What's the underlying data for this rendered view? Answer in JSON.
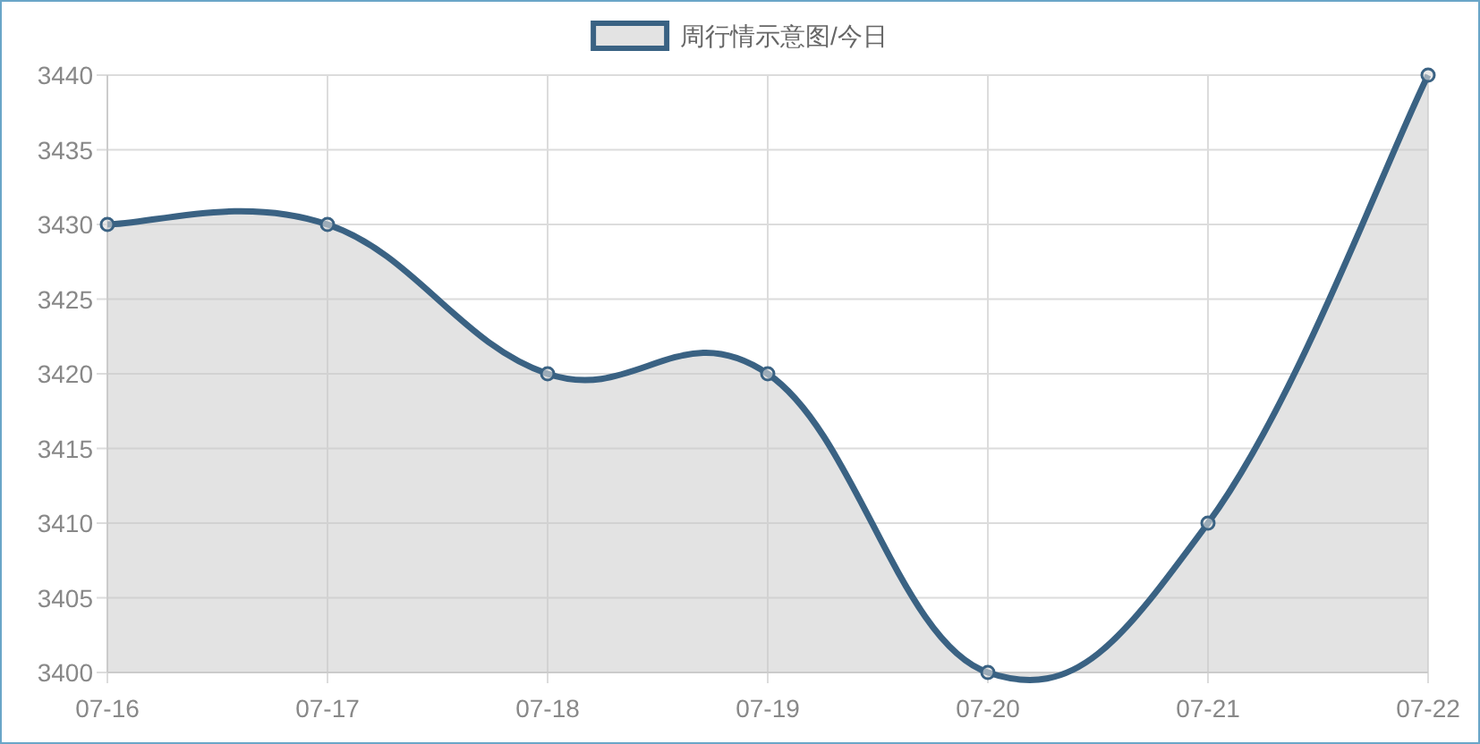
{
  "chart_data": {
    "type": "area",
    "categories": [
      "07-16",
      "07-17",
      "07-18",
      "07-19",
      "07-20",
      "07-21",
      "07-22"
    ],
    "series": [
      {
        "name": "周行情示意图/今日",
        "color": "#3a6283",
        "values": [
          3430,
          3430,
          3420,
          3420,
          3400,
          3410,
          3440
        ]
      }
    ],
    "ylim": [
      3400,
      3440
    ],
    "yticks": [
      3400,
      3405,
      3410,
      3415,
      3420,
      3425,
      3430,
      3435,
      3440
    ],
    "grid": true,
    "legend": "top",
    "marker": "circle"
  }
}
